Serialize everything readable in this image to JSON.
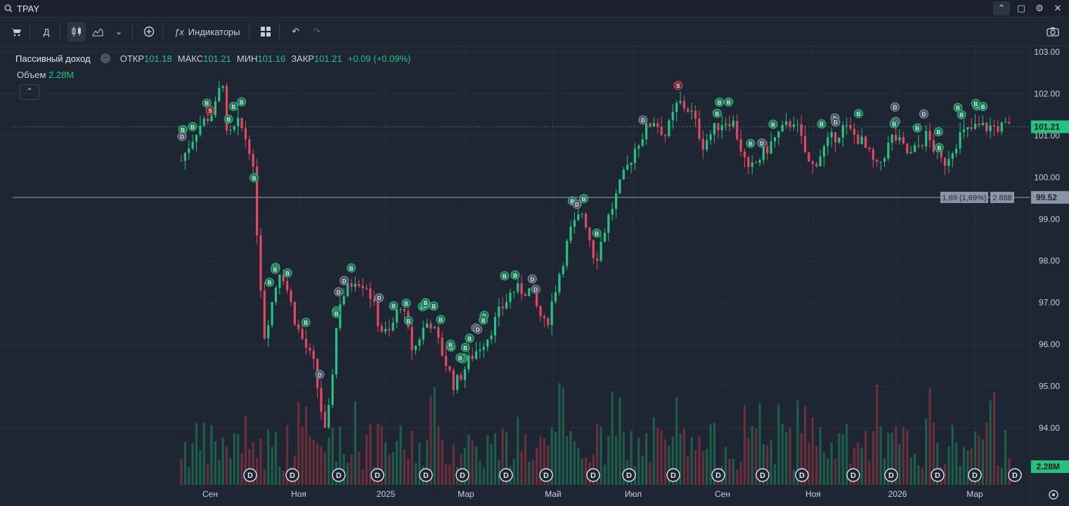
{
  "header": {
    "ticker": "TPAY"
  },
  "toolbar": {
    "period": "Д",
    "indicators_label": "Индикаторы"
  },
  "legend": {
    "name": "Пассивный доход",
    "open_label": "ОТКР",
    "open": "101.18",
    "high_label": "МАКС",
    "high": "101.21",
    "low_label": "МИН",
    "low": "101.16",
    "close_label": "ЗАКР",
    "close": "101.21",
    "change": "+0.09 (+0.09%)",
    "volume_label": "Объем",
    "volume": "2.28M"
  },
  "colors": {
    "up": "#26c281",
    "down": "#e5485d",
    "background": "#1e2634",
    "grid": "#273040"
  },
  "chart_data": {
    "type": "candlestick",
    "x_ticks": [
      "Сен",
      "Ноя",
      "2025",
      "Мар",
      "Май",
      "Июл",
      "Сен",
      "Ноя",
      "2026",
      "Мар"
    ],
    "y_ticks": [
      103.0,
      102.0,
      101.0,
      100.0,
      99.0,
      98.0,
      97.0,
      96.0,
      95.0,
      94.0
    ],
    "ylim": [
      93.0,
      103.2
    ],
    "last_price": "101.21",
    "last_volume": "2.28M",
    "horizontal_line": {
      "price": "99.52",
      "label_change": "1,69 (1,69%)",
      "label_count": "2 888"
    },
    "dividend_marker": "D",
    "buy_marker": "B",
    "sell_marker": "S",
    "price_path": [
      [
        0.0,
        100.4
      ],
      [
        0.02,
        101.2
      ],
      [
        0.04,
        101.6
      ],
      [
        0.05,
        102.4
      ],
      [
        0.055,
        100.9
      ],
      [
        0.07,
        101.3
      ],
      [
        0.085,
        100.6
      ],
      [
        0.1,
        96.2
      ],
      [
        0.12,
        97.9
      ],
      [
        0.14,
        96.4
      ],
      [
        0.16,
        95.5
      ],
      [
        0.175,
        93.7
      ],
      [
        0.19,
        97.0
      ],
      [
        0.21,
        97.6
      ],
      [
        0.225,
        97.4
      ],
      [
        0.24,
        96.4
      ],
      [
        0.25,
        96.2
      ],
      [
        0.265,
        97.0
      ],
      [
        0.28,
        95.8
      ],
      [
        0.29,
        96.3
      ],
      [
        0.3,
        96.6
      ],
      [
        0.33,
        95.0
      ],
      [
        0.35,
        95.7
      ],
      [
        0.37,
        96.2
      ],
      [
        0.385,
        96.8
      ],
      [
        0.4,
        97.3
      ],
      [
        0.42,
        97.3
      ],
      [
        0.44,
        96.4
      ],
      [
        0.455,
        97.6
      ],
      [
        0.47,
        98.7
      ],
      [
        0.485,
        99.2
      ],
      [
        0.5,
        98.0
      ],
      [
        0.515,
        99.0
      ],
      [
        0.53,
        99.8
      ],
      [
        0.55,
        100.8
      ],
      [
        0.57,
        101.4
      ],
      [
        0.585,
        101.0
      ],
      [
        0.6,
        101.8
      ],
      [
        0.615,
        101.6
      ],
      [
        0.63,
        100.8
      ],
      [
        0.65,
        101.3
      ],
      [
        0.665,
        101.4
      ],
      [
        0.685,
        100.1
      ],
      [
        0.7,
        100.5
      ],
      [
        0.72,
        101.0
      ],
      [
        0.74,
        101.4
      ],
      [
        0.76,
        100.2
      ],
      [
        0.78,
        100.8
      ],
      [
        0.8,
        101.2
      ],
      [
        0.82,
        100.9
      ],
      [
        0.84,
        100.2
      ],
      [
        0.86,
        101.0
      ],
      [
        0.88,
        100.5
      ],
      [
        0.9,
        101.0
      ],
      [
        0.92,
        100.3
      ],
      [
        0.94,
        101.0
      ],
      [
        0.96,
        101.2
      ]
    ]
  }
}
